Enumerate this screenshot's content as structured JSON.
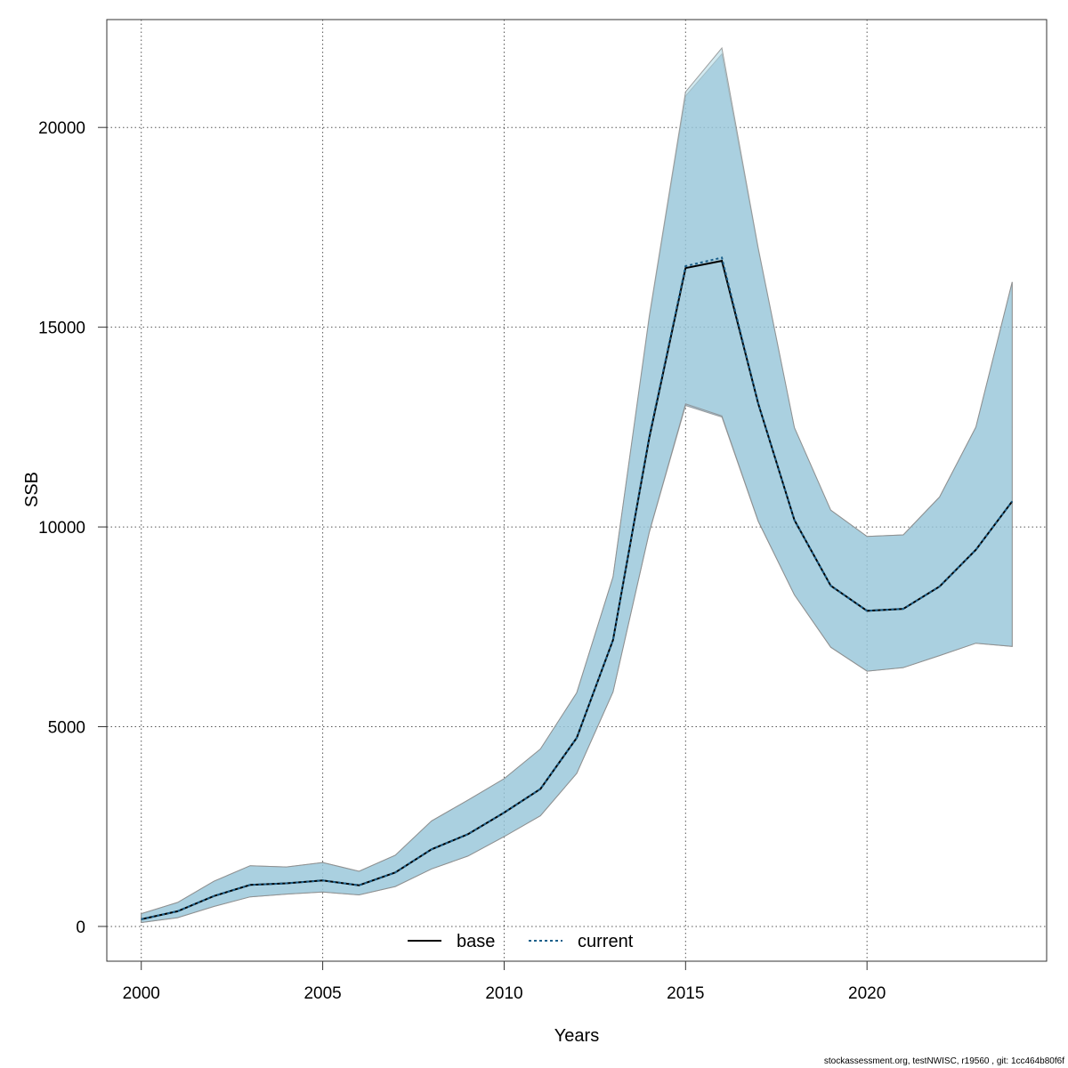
{
  "chart_data": {
    "type": "line",
    "xlabel": "Years",
    "ylabel": "SSB",
    "xlim": [
      1999.05,
      2024.95
    ],
    "ylim": [
      -870,
      22700
    ],
    "x_ticks": [
      2000,
      2005,
      2010,
      2015,
      2020
    ],
    "y_ticks": [
      0,
      5000,
      10000,
      15000,
      20000
    ],
    "grid": true,
    "legend_position": "bottom-center",
    "x": [
      2000,
      2001,
      2002,
      2003,
      2004,
      2005,
      2006,
      2007,
      2008,
      2009,
      2010,
      2011,
      2012,
      2013,
      2014,
      2015,
      2016,
      2017,
      2018,
      2019,
      2020,
      2021,
      2022,
      2023,
      2024
    ],
    "series": [
      {
        "name": "base",
        "color": "#000000",
        "line_style": "solid",
        "band_color": "#6a9fbf",
        "values": [
          180,
          380,
          760,
          1040,
          1080,
          1150,
          1030,
          1350,
          1930,
          2310,
          2850,
          3440,
          4720,
          7170,
          12230,
          16480,
          16660,
          13090,
          10170,
          8530,
          7900,
          7950,
          8510,
          9430,
          10640
        ],
        "lower": [
          100,
          220,
          500,
          740,
          810,
          860,
          790,
          1000,
          1440,
          1760,
          2250,
          2770,
          3830,
          5870,
          9860,
          13040,
          12750,
          10140,
          8300,
          6990,
          6390,
          6480,
          6780,
          7090,
          7010
        ],
        "upper": [
          320,
          600,
          1130,
          1520,
          1490,
          1600,
          1380,
          1780,
          2640,
          3160,
          3700,
          4440,
          5850,
          8750,
          15220,
          20790,
          21840,
          16950,
          12480,
          10420,
          9760,
          9800,
          10750,
          12500,
          16130
        ]
      },
      {
        "name": "current",
        "color": "#1a5f8a",
        "line_style": "dotted",
        "band_color": "#add8e6",
        "values": [
          180,
          380,
          760,
          1040,
          1080,
          1150,
          1030,
          1350,
          1930,
          2310,
          2850,
          3440,
          4720,
          7170,
          12270,
          16530,
          16740,
          13100,
          10170,
          8530,
          7900,
          7950,
          8510,
          9430,
          10640
        ],
        "lower": [
          100,
          220,
          500,
          740,
          810,
          860,
          790,
          1000,
          1440,
          1760,
          2250,
          2770,
          3830,
          5870,
          9870,
          13080,
          12780,
          10150,
          8300,
          6990,
          6390,
          6480,
          6780,
          7090,
          7010
        ],
        "upper": [
          320,
          600,
          1130,
          1520,
          1490,
          1600,
          1380,
          1780,
          2640,
          3160,
          3700,
          4440,
          5850,
          8750,
          15280,
          20890,
          21990,
          16990,
          12490,
          10420,
          9760,
          9800,
          10750,
          12500,
          16130
        ]
      }
    ]
  },
  "footer": {
    "text": "stockassessment.org, testNWISC, r19560 , git: 1cc464b80f6f"
  }
}
